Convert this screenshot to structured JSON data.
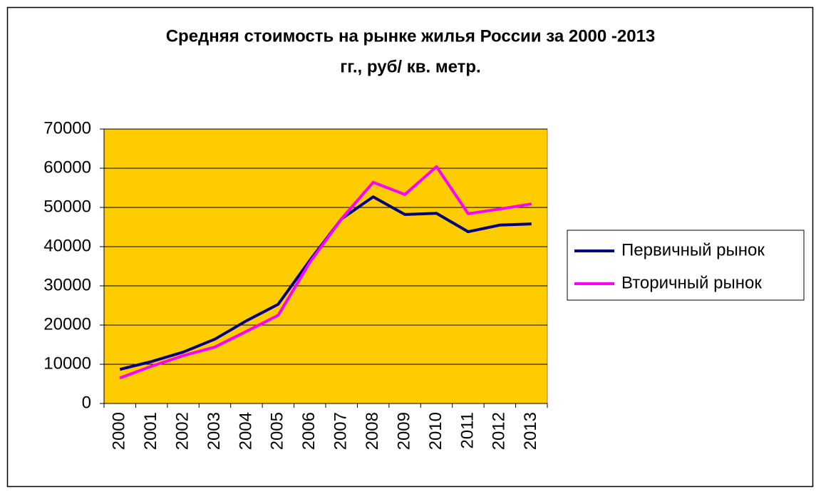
{
  "chart_data": {
    "type": "line",
    "title": [
      "Средняя стоимость на рынке жилья России за 2000 -2013",
      "гг., руб/ кв. метр."
    ],
    "categories": [
      "2000",
      "2001",
      "2002",
      "2003",
      "2004",
      "2005",
      "2006",
      "2007",
      "2008",
      "2009",
      "2010",
      "2011",
      "2012",
      "2013"
    ],
    "series": [
      {
        "name": "Первичный рынок",
        "color": "#000080",
        "values": [
          8700,
          10700,
          13100,
          16400,
          21100,
          25300,
          36500,
          47100,
          52700,
          48200,
          48500,
          43800,
          45500,
          45800
        ]
      },
      {
        "name": "Вторичный рынок",
        "color": "#ff00ff",
        "values": [
          6500,
          9500,
          12200,
          14400,
          18400,
          22500,
          36000,
          47100,
          56400,
          53300,
          60400,
          48400,
          49600,
          50900
        ]
      }
    ],
    "ylim": [
      0,
      70000
    ],
    "yticks": [
      0,
      10000,
      20000,
      30000,
      40000,
      50000,
      60000,
      70000
    ],
    "grid": true,
    "plot_color": "#ffcc00",
    "legend": "right"
  }
}
